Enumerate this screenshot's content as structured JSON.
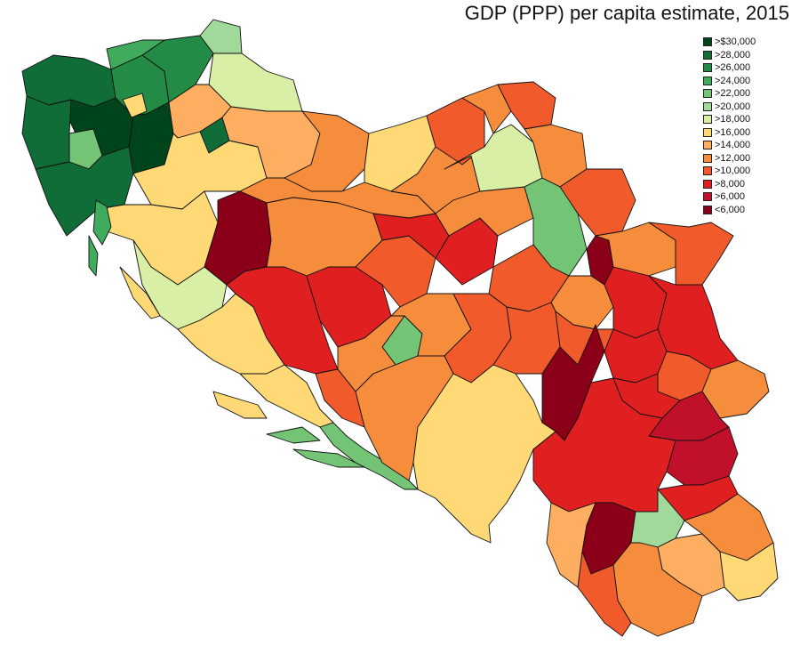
{
  "title": "GDP (PPP) per capita estimate, 2015",
  "legend": [
    {
      "label": ">$30,000",
      "color": "#00441b"
    },
    {
      "label": ">28,000",
      "color": "#116d37"
    },
    {
      "label": ">26,000",
      "color": "#238b45"
    },
    {
      "label": ">24,000",
      "color": "#41ab5d"
    },
    {
      "label": ">22,000",
      "color": "#74c476"
    },
    {
      "label": ">20,000",
      "color": "#a1d99b"
    },
    {
      "label": ">18,000",
      "color": "#d9efa5"
    },
    {
      "label": ">16,000",
      "color": "#fed976"
    },
    {
      "label": ">14,000",
      "color": "#fdae61"
    },
    {
      "label": ">12,000",
      "color": "#f68d3c"
    },
    {
      "label": ">10,000",
      "color": "#f15a2b"
    },
    {
      "label": ">8,000",
      "color": "#e02020"
    },
    {
      "label": ">6,000",
      "color": "#c0102a"
    },
    {
      "label": "<6,000",
      "color": "#8b0018"
    }
  ]
}
